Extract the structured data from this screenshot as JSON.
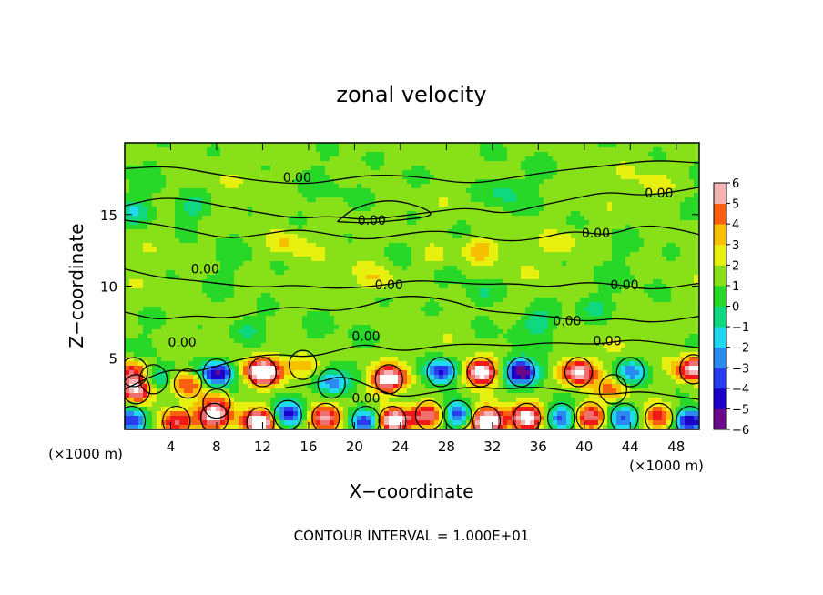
{
  "chart_data": {
    "type": "heatmap",
    "title": "zonal velocity",
    "xlabel": "X−coordinate",
    "ylabel": "Z−coordinate",
    "x_unit_left": "(×1000 m)",
    "x_unit_right": "(×1000 m)",
    "xlim": [
      0,
      50
    ],
    "ylim": [
      0,
      20
    ],
    "x_ticks": [
      4,
      8,
      12,
      16,
      20,
      24,
      28,
      32,
      36,
      40,
      44,
      48
    ],
    "y_ticks": [
      5,
      10,
      15
    ],
    "colorbar": {
      "min": -6,
      "max": 6,
      "ticks": [
        6,
        5,
        4,
        3,
        2,
        1,
        0,
        -1,
        -2,
        -3,
        -4,
        -5,
        -6
      ],
      "tick_labels": [
        "6",
        "5",
        "4",
        "3",
        "2",
        "1",
        "0",
        "−1",
        "−2",
        "−3",
        "−4",
        "−5",
        "−6"
      ],
      "colors": [
        "#6a0a8a",
        "#1a00c8",
        "#2a3cf0",
        "#2a8af0",
        "#20d8f0",
        "#10d880",
        "#28d828",
        "#88e018",
        "#e8f010",
        "#f8c000",
        "#f86010",
        "#f01818",
        "#f07070",
        "#f4b4b4"
      ]
    },
    "contour_label": "0.00",
    "contour_interval_text": "CONTOUR INTERVAL = 1.000E+01",
    "field_blobs": [
      {
        "x": 1.0,
        "z": 2.8,
        "v": 7
      },
      {
        "x": 0.8,
        "z": 4.0,
        "v": 5
      },
      {
        "x": 2.5,
        "z": 3.5,
        "v": -4
      },
      {
        "x": 8.0,
        "z": 3.9,
        "v": -7
      },
      {
        "x": 5.5,
        "z": 3.2,
        "v": 4
      },
      {
        "x": 12.0,
        "z": 4.0,
        "v": 9
      },
      {
        "x": 15.5,
        "z": 4.5,
        "v": 3
      },
      {
        "x": 18.0,
        "z": 3.2,
        "v": -4
      },
      {
        "x": 23.0,
        "z": 3.5,
        "v": 8
      },
      {
        "x": 27.5,
        "z": 4.0,
        "v": -6
      },
      {
        "x": 31.0,
        "z": 4.0,
        "v": 8
      },
      {
        "x": 34.5,
        "z": 4.0,
        "v": -7
      },
      {
        "x": 39.5,
        "z": 4.0,
        "v": 7
      },
      {
        "x": 44.0,
        "z": 4.0,
        "v": -4
      },
      {
        "x": 49.5,
        "z": 4.2,
        "v": 7
      },
      {
        "x": 42.5,
        "z": 2.8,
        "v": 3
      },
      {
        "x": 0.6,
        "z": 0.6,
        "v": -6
      },
      {
        "x": 4.5,
        "z": 0.6,
        "v": 5
      },
      {
        "x": 7.8,
        "z": 0.8,
        "v": 7
      },
      {
        "x": 11.8,
        "z": 0.5,
        "v": 9
      },
      {
        "x": 14.2,
        "z": 1.0,
        "v": -6
      },
      {
        "x": 17.5,
        "z": 0.8,
        "v": 6
      },
      {
        "x": 21.0,
        "z": 0.6,
        "v": -6
      },
      {
        "x": 23.3,
        "z": 0.6,
        "v": 9
      },
      {
        "x": 26.5,
        "z": 1.0,
        "v": 6
      },
      {
        "x": 29.0,
        "z": 1.0,
        "v": -5
      },
      {
        "x": 31.5,
        "z": 0.6,
        "v": 9
      },
      {
        "x": 35.0,
        "z": 0.8,
        "v": 7
      },
      {
        "x": 38.0,
        "z": 0.8,
        "v": -5
      },
      {
        "x": 40.5,
        "z": 0.9,
        "v": 6
      },
      {
        "x": 43.5,
        "z": 0.8,
        "v": -4
      },
      {
        "x": 46.5,
        "z": 0.8,
        "v": 5
      },
      {
        "x": 49.2,
        "z": 0.6,
        "v": -7
      },
      {
        "x": 8.0,
        "z": 1.8,
        "v": 3
      },
      {
        "x": 10.5,
        "z": 7.0,
        "v": -2
      },
      {
        "x": 36.0,
        "z": 7.5,
        "v": -2
      },
      {
        "x": 31.0,
        "z": 9.5,
        "v": -1.5
      },
      {
        "x": 41.0,
        "z": 8.5,
        "v": -1.5
      },
      {
        "x": 22.0,
        "z": 10.5,
        "v": 1.8
      },
      {
        "x": 27.0,
        "z": 12.0,
        "v": 1.5
      },
      {
        "x": 31.0,
        "z": 12.5,
        "v": 2
      },
      {
        "x": 14.0,
        "z": 13.0,
        "v": 1.8
      },
      {
        "x": 38.0,
        "z": 13.0,
        "v": 1.3
      },
      {
        "x": 6.0,
        "z": 15.5,
        "v": -2
      },
      {
        "x": 0.8,
        "z": 15.2,
        "v": -2
      },
      {
        "x": 33.0,
        "z": 16.5,
        "v": -1.5
      },
      {
        "x": 25.0,
        "z": 17.5,
        "v": -1
      },
      {
        "x": 46.0,
        "z": 17.0,
        "v": 1
      }
    ],
    "contours": [
      {
        "points": [
          [
            0,
            2.8
          ],
          [
            2,
            3.6
          ],
          [
            4,
            4.2
          ],
          [
            6,
            4.0
          ],
          [
            8,
            4.4
          ],
          [
            10,
            4.9
          ],
          [
            13,
            5.3
          ],
          [
            16,
            5.0
          ],
          [
            19,
            5.6
          ],
          [
            21,
            6.0
          ],
          [
            24,
            5.4
          ],
          [
            27,
            5.8
          ],
          [
            30,
            6.0
          ],
          [
            34,
            5.8
          ],
          [
            37,
            6.1
          ],
          [
            41,
            5.9
          ],
          [
            44,
            6.3
          ],
          [
            47,
            6.0
          ],
          [
            50,
            5.7
          ]
        ],
        "labels": [
          {
            "x": 5,
            "z": 6.1
          },
          {
            "x": 21,
            "z": 6.5
          },
          {
            "x": 42,
            "z": 6.2
          }
        ]
      },
      {
        "points": [
          [
            0,
            8.2
          ],
          [
            3,
            7.6
          ],
          [
            6,
            8.0
          ],
          [
            9,
            7.7
          ],
          [
            12,
            8.3
          ],
          [
            15,
            8.6
          ],
          [
            18,
            8.2
          ],
          [
            21,
            8.6
          ],
          [
            24,
            9.4
          ],
          [
            28,
            9.1
          ],
          [
            31,
            8.3
          ],
          [
            34,
            8.1
          ],
          [
            37,
            7.9
          ],
          [
            40,
            7.5
          ],
          [
            43,
            7.8
          ],
          [
            46,
            7.4
          ],
          [
            50,
            7.9
          ]
        ],
        "labels": [
          {
            "x": 38.5,
            "z": 7.6
          }
        ]
      },
      {
        "points": [
          [
            0,
            11.2
          ],
          [
            3,
            10.6
          ],
          [
            6,
            10.4
          ],
          [
            9,
            10.1
          ],
          [
            12,
            9.9
          ],
          [
            15,
            10.1
          ],
          [
            18,
            9.8
          ],
          [
            22,
            10.0
          ],
          [
            25,
            10.4
          ],
          [
            28,
            10.3
          ],
          [
            31,
            10.1
          ],
          [
            34,
            10.2
          ],
          [
            37,
            9.9
          ],
          [
            40,
            10.3
          ],
          [
            43,
            10.1
          ],
          [
            46,
            9.7
          ],
          [
            50,
            10.2
          ]
        ],
        "labels": [
          {
            "x": 7,
            "z": 11.2
          },
          {
            "x": 23,
            "z": 10.1
          },
          {
            "x": 43.5,
            "z": 10.1
          }
        ]
      },
      {
        "points": [
          [
            0,
            14.6
          ],
          [
            3,
            14.3
          ],
          [
            6,
            13.8
          ],
          [
            9,
            13.3
          ],
          [
            12,
            13.6
          ],
          [
            15,
            14.0
          ],
          [
            18,
            13.6
          ],
          [
            21,
            13.2
          ],
          [
            24,
            13.6
          ],
          [
            27,
            13.9
          ],
          [
            30,
            13.6
          ],
          [
            33,
            13.1
          ],
          [
            36,
            13.3
          ],
          [
            39,
            13.9
          ],
          [
            42,
            13.5
          ],
          [
            45,
            14.3
          ],
          [
            48,
            14.0
          ],
          [
            50,
            13.6
          ]
        ],
        "labels": [
          {
            "x": 41,
            "z": 13.7
          }
        ]
      },
      {
        "points": [
          [
            0,
            15.6
          ],
          [
            3,
            16.2
          ],
          [
            6,
            16.0
          ],
          [
            9,
            15.5
          ],
          [
            12,
            15.1
          ],
          [
            15,
            14.7
          ],
          [
            18,
            14.9
          ],
          [
            21,
            14.6
          ],
          [
            24,
            14.9
          ],
          [
            27,
            15.2
          ],
          [
            30,
            15.5
          ],
          [
            33,
            15.0
          ],
          [
            36,
            15.6
          ],
          [
            39,
            16.1
          ],
          [
            42,
            16.6
          ],
          [
            45,
            16.3
          ],
          [
            48,
            16.6
          ],
          [
            50,
            16.9
          ]
        ],
        "labels": [
          {
            "x": 46.5,
            "z": 16.5
          }
        ]
      },
      {
        "points": [
          [
            0,
            18.2
          ],
          [
            4,
            18.4
          ],
          [
            8,
            17.8
          ],
          [
            12,
            17.3
          ],
          [
            16,
            17.1
          ],
          [
            19,
            17.5
          ],
          [
            22,
            17.8
          ],
          [
            26,
            17.6
          ],
          [
            30,
            17.1
          ],
          [
            34,
            17.6
          ],
          [
            38,
            18.1
          ],
          [
            42,
            18.4
          ],
          [
            46,
            18.8
          ],
          [
            50,
            18.6
          ]
        ],
        "labels": [
          {
            "x": 15,
            "z": 17.6
          }
        ]
      },
      {
        "points": [
          [
            18.5,
            14.5
          ],
          [
            20,
            15.5
          ],
          [
            23,
            16.1
          ],
          [
            26,
            15.5
          ],
          [
            27,
            14.9
          ],
          [
            24,
            14.6
          ],
          [
            21,
            14.4
          ],
          [
            18.5,
            14.5
          ]
        ],
        "labels": [
          {
            "x": 21.5,
            "z": 14.6
          }
        ]
      },
      {
        "points": [
          [
            14,
            2.9
          ],
          [
            17,
            3.3
          ],
          [
            19,
            3.8
          ],
          [
            22,
            2.8
          ],
          [
            24,
            2.2
          ],
          [
            27,
            2.6
          ],
          [
            30,
            3.0
          ],
          [
            33,
            2.8
          ],
          [
            36,
            3.0
          ],
          [
            39,
            2.6
          ],
          [
            42,
            2.4
          ],
          [
            45,
            2.7
          ],
          [
            48,
            2.3
          ],
          [
            50,
            2.1
          ]
        ],
        "labels": [
          {
            "x": 21,
            "z": 2.2
          }
        ]
      }
    ]
  }
}
